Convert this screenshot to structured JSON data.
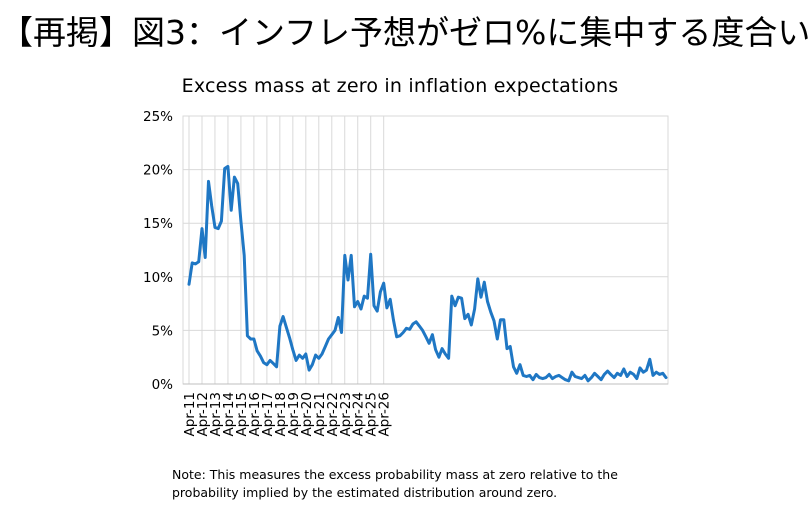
{
  "headline": "【再掲】図3：インフレ予想がゼロ%に集中する度合い",
  "chart_data": {
    "type": "line",
    "title": "Excess mass at zero in inflation expectations",
    "xlabel": "",
    "ylabel": "",
    "ylim": [
      0,
      25
    ],
    "yticks": [
      "0%",
      "5%",
      "10%",
      "15%",
      "20%",
      "25%"
    ],
    "ytick_values": [
      0,
      5,
      10,
      15,
      20,
      25
    ],
    "xticks": [
      "Apr-11",
      "Apr-12",
      "Apr-13",
      "Apr-14",
      "Apr-15",
      "Apr-16",
      "Apr-17",
      "Apr-18",
      "Apr-19",
      "Apr-20",
      "Apr-21",
      "Apr-22",
      "Apr-23",
      "Apr-24",
      "Apr-25",
      "Apr-26"
    ],
    "grid": true,
    "series_color": "#1f77c4",
    "x_start": "Apr-11",
    "x_step": "quarter",
    "series": [
      {
        "values": [
          9.3,
          11.3,
          11.2,
          11.4,
          14.5,
          11.8,
          18.9,
          16.6,
          14.6,
          14.5,
          15.2,
          20.1,
          20.3,
          16.2,
          19.3,
          18.7,
          15.2,
          12.0,
          4.5,
          4.2,
          4.2,
          3.1,
          2.6,
          2.0,
          1.8,
          2.2,
          1.9,
          1.6,
          5.4,
          6.3,
          5.3,
          4.3,
          3.2,
          2.2,
          2.7,
          2.4,
          2.8,
          1.3,
          1.8,
          2.7,
          2.4,
          2.8,
          3.5,
          4.2,
          4.6,
          5.0,
          6.2,
          4.8,
          12.0,
          9.7,
          12.0,
          7.2,
          7.7,
          7.0,
          8.2,
          8.0,
          12.1,
          7.3,
          6.8,
          8.6,
          9.4,
          7.1,
          7.9,
          6.0,
          4.4,
          4.5,
          4.8,
          5.2,
          5.1,
          5.6,
          5.8,
          5.4,
          5.0,
          4.4,
          3.8,
          4.6,
          3.2,
          2.5,
          3.3,
          2.8,
          2.4,
          8.2,
          7.3,
          8.1,
          8.0,
          6.1,
          6.5,
          5.5,
          7.0,
          9.8,
          8.1,
          9.5,
          7.7,
          6.7,
          5.9,
          4.2,
          6.0,
          6.0,
          3.3,
          3.5,
          1.6,
          1.0,
          1.8,
          0.8,
          0.7,
          0.8,
          0.4,
          0.9,
          0.6,
          0.5,
          0.6,
          0.9,
          0.5,
          0.7,
          0.8,
          0.6,
          0.4,
          0.3,
          1.1,
          0.7,
          0.6,
          0.5,
          0.8,
          0.3,
          0.6,
          1.0,
          0.7,
          0.4,
          0.9,
          1.2,
          0.9,
          0.6,
          1.0,
          0.8,
          1.4,
          0.7,
          1.1,
          0.9,
          0.5,
          1.5,
          1.1,
          1.3,
          2.3,
          0.8,
          1.1,
          0.9,
          1.0,
          0.6
        ]
      }
    ]
  },
  "note": {
    "line1": "Note: This measures the excess probability mass at zero relative to the",
    "line2": "probability implied by the estimated distribution around zero."
  }
}
